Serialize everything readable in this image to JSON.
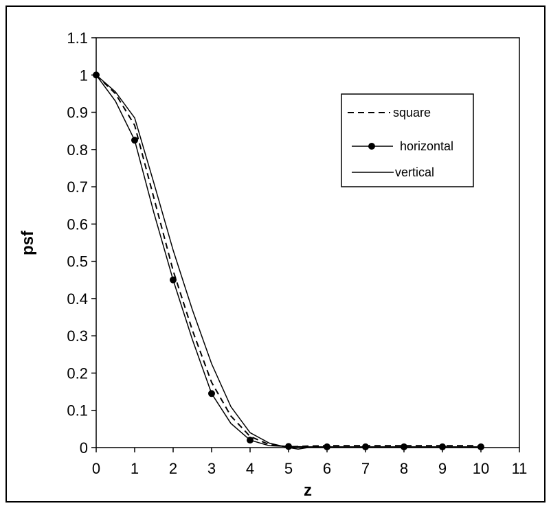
{
  "chart_data": {
    "type": "line",
    "title": "",
    "xlabel": "z",
    "ylabel": "psf",
    "xlim": [
      0,
      11
    ],
    "ylim": [
      0,
      1.1
    ],
    "x_ticks": [
      "0",
      "1",
      "2",
      "3",
      "4",
      "5",
      "6",
      "7",
      "8",
      "9",
      "10",
      "11"
    ],
    "y_ticks": [
      "0",
      "0.1",
      "0.2",
      "0.3",
      "0.4",
      "0.5",
      "0.6",
      "0.7",
      "0.8",
      "0.9",
      "1",
      "1.1"
    ],
    "grid": false,
    "legend_position": "top-right",
    "series": [
      {
        "name": "square",
        "style": "dashed",
        "color": "#000000",
        "x": [
          0,
          0.5,
          1,
          1.5,
          2,
          2.5,
          3,
          3.5,
          4,
          4.5,
          5,
          5.5,
          6,
          7,
          8,
          9,
          10
        ],
        "y": [
          1.0,
          0.95,
          0.865,
          0.67,
          0.475,
          0.315,
          0.175,
          0.085,
          0.03,
          0.008,
          0.002,
          0.004,
          0.005,
          0.005,
          0.005,
          0.005,
          0.005
        ]
      },
      {
        "name": "horizontal",
        "style": "solid-markers",
        "color": "#000000",
        "x": [
          0,
          0.5,
          1,
          1.5,
          2,
          2.5,
          3,
          3.5,
          4,
          4.5,
          5,
          5.5,
          6,
          7,
          8,
          9,
          10
        ],
        "y": [
          1.0,
          0.93,
          0.825,
          0.63,
          0.45,
          0.29,
          0.145,
          0.065,
          0.02,
          0.005,
          0.003,
          0.002,
          0.002,
          0.002,
          0.002,
          0.002,
          0.002
        ],
        "markers_at": [
          0,
          1,
          2,
          3,
          4,
          5,
          6,
          7,
          8,
          9,
          10
        ]
      },
      {
        "name": "vertical",
        "style": "solid",
        "color": "#000000",
        "x": [
          0,
          0.5,
          1,
          1.5,
          2,
          2.5,
          3,
          3.5,
          4,
          4.5,
          5,
          5.25,
          5.5,
          6,
          7,
          8,
          9,
          10
        ],
        "y": [
          1.0,
          0.955,
          0.885,
          0.71,
          0.53,
          0.37,
          0.225,
          0.11,
          0.04,
          0.012,
          0.0,
          -0.004,
          0.0,
          0.0,
          0.0,
          0.0,
          0.0,
          0.0
        ]
      }
    ]
  }
}
